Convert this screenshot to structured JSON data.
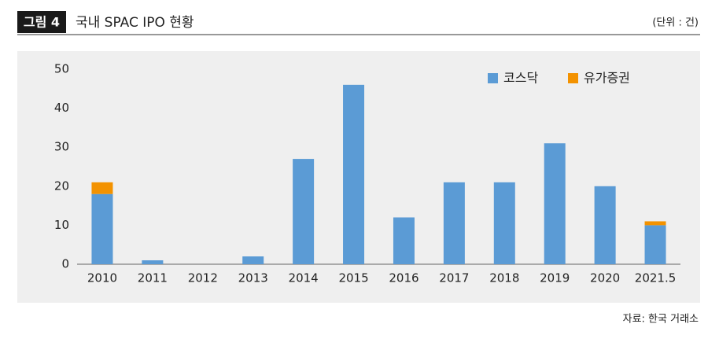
{
  "header": {
    "tag": "그림 4",
    "title": "국내 SPAC IPO 현황",
    "unit": "(단위 : 건)"
  },
  "chart_data": {
    "type": "bar",
    "stacked": true,
    "categories": [
      "2010",
      "2011",
      "2012",
      "2013",
      "2014",
      "2015",
      "2016",
      "2017",
      "2018",
      "2019",
      "2020",
      "2021.5"
    ],
    "series": [
      {
        "name": "코스닥",
        "color": "#5b9bd5",
        "values": [
          18,
          1,
          0,
          2,
          27,
          46,
          12,
          21,
          21,
          31,
          20,
          10
        ]
      },
      {
        "name": "유가증권",
        "color": "#f39200",
        "values": [
          3,
          0,
          0,
          0,
          0,
          0,
          0,
          0,
          0,
          0,
          0,
          1
        ]
      }
    ],
    "ylim": [
      0,
      50
    ],
    "yticks": [
      0,
      10,
      20,
      30,
      40,
      50
    ]
  },
  "source": "자료: 한국 거래소"
}
